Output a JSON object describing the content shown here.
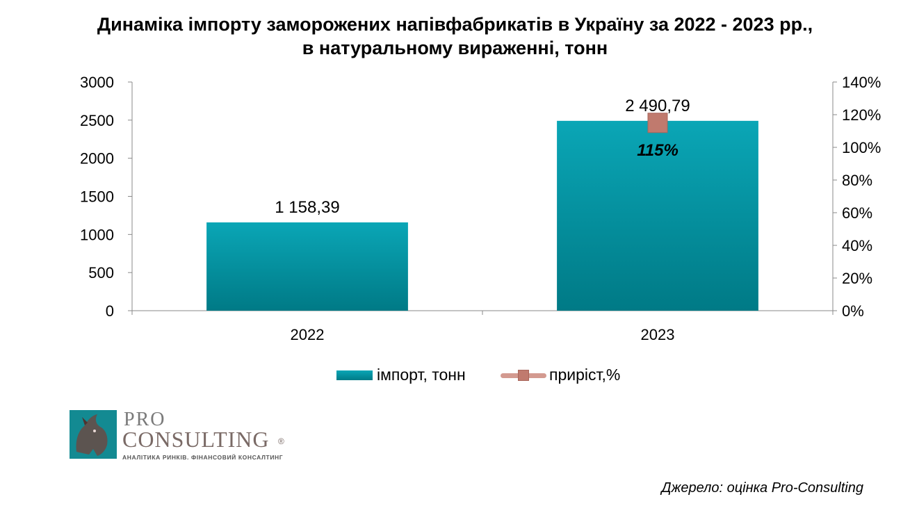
{
  "title_line1": "Динаміка імпорту заморожених напівфабрикатів в Україну за 2022 - 2023 рр.,",
  "title_line2": "в натуральному вираженні, тонн",
  "source": "Джерело: оцінка Pro-Consulting",
  "logo": {
    "pro": "PRO",
    "consulting": "CONSULTING",
    "registered": "®",
    "tagline": "АНАЛІТИКА РИНКІВ. ФІНАНСОВИЙ КОНСАЛТИНГ",
    "brand_color": "#138a92"
  },
  "chart_data": {
    "type": "bar",
    "categories": [
      "2022",
      "2023"
    ],
    "series": [
      {
        "name": "імпорт, тонн",
        "type": "bar",
        "axis": "left",
        "values": [
          1158.39,
          2490.79
        ],
        "labels": [
          "1 158,39",
          "2 490,79"
        ],
        "color": "#0097a7"
      },
      {
        "name": "приріст,%",
        "type": "line",
        "axis": "right",
        "values": [
          null,
          115
        ],
        "labels": [
          "",
          "115%"
        ],
        "color": "#c07a6e"
      }
    ],
    "y_left": {
      "min": 0,
      "max": 3000,
      "ticks": [
        0,
        500,
        1000,
        1500,
        2000,
        2500,
        3000
      ],
      "tick_labels": [
        "0",
        "500",
        "1000",
        "1500",
        "2000",
        "2500",
        "3000"
      ]
    },
    "y_right": {
      "min": 0,
      "max": 140,
      "ticks": [
        0,
        20,
        40,
        60,
        80,
        100,
        120,
        140
      ],
      "tick_labels": [
        "0%",
        "20%",
        "40%",
        "60%",
        "80%",
        "100%",
        "120%",
        "140%"
      ]
    },
    "legend_position": "bottom",
    "grid": false
  }
}
